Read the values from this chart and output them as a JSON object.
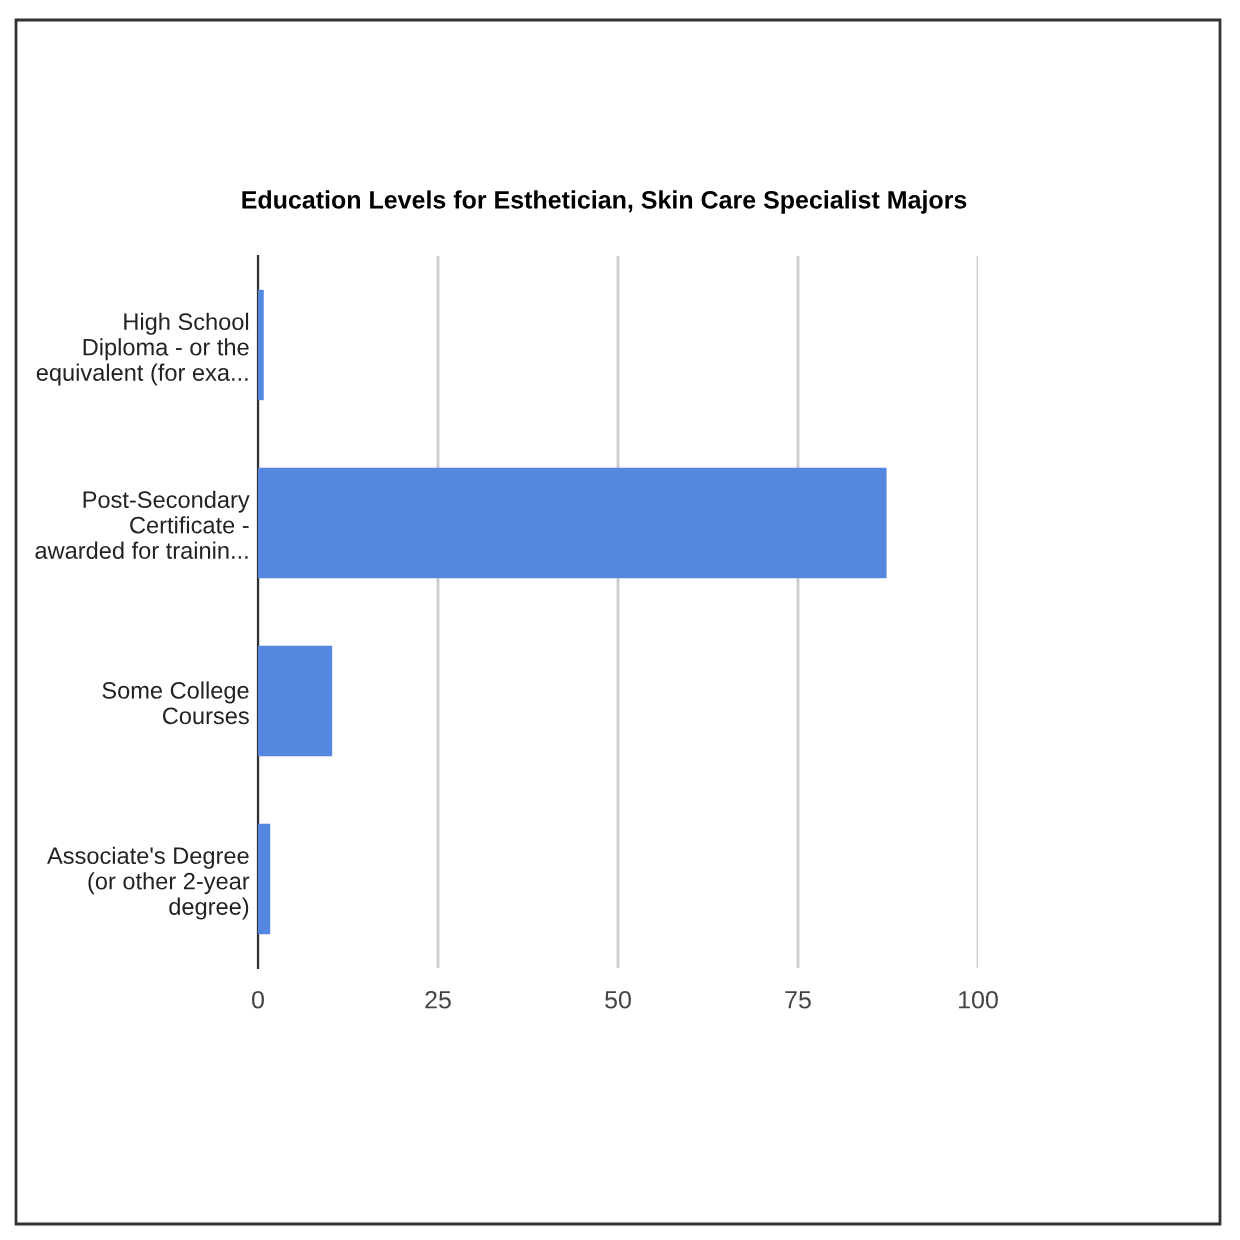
{
  "chart_data": {
    "type": "bar",
    "orientation": "horizontal",
    "title": "Education Levels for Esthetician, Skin Care Specialist Majors",
    "categories": [
      "High School\nDiploma - or the\nequivalent (for exa...",
      "Post-Secondary\nCertificate -\nawarded for trainin...",
      "Some College\nCourses",
      "Associate's Degree\n(or other 2-year\ndegree)"
    ],
    "values": [
      0.8,
      87.3,
      10.3,
      1.7
    ],
    "color": "#5586e0",
    "xlim": [
      0,
      100
    ],
    "xticks": [
      0,
      25,
      50,
      75,
      100
    ],
    "grid": "x",
    "legend": false
  }
}
